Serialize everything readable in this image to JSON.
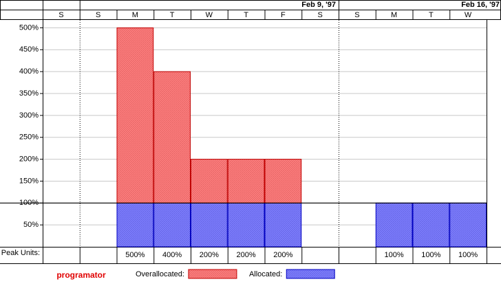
{
  "chart_data": {
    "type": "bar",
    "resource": "programator",
    "peak_label": "Peak Units:",
    "week_labels": [
      "Feb 9, '97",
      "Feb 16, '97"
    ],
    "categories": [
      "S",
      "S",
      "M",
      "T",
      "W",
      "T",
      "F",
      "S",
      "S",
      "M",
      "T",
      "W"
    ],
    "series": [
      {
        "name": "Allocated:",
        "color": "#8080ff",
        "edge": "#0000c0",
        "values": [
          null,
          null,
          100,
          100,
          100,
          100,
          100,
          null,
          null,
          100,
          100,
          100
        ]
      },
      {
        "name": "Overallocated:",
        "color": "#ff8080",
        "edge": "#c00000",
        "values": [
          null,
          null,
          400,
          300,
          100,
          100,
          100,
          null,
          null,
          null,
          null,
          null
        ]
      }
    ],
    "legend_order": [
      1,
      0
    ],
    "peak_units": {
      "values": [
        null,
        null,
        500,
        400,
        200,
        200,
        200,
        null,
        null,
        100,
        100,
        100
      ],
      "value_labels": [
        null,
        null,
        "500%",
        "400%",
        "200%",
        "200%",
        "200%",
        null,
        null,
        "100%",
        "100%",
        "100%"
      ]
    },
    "max_units": 100,
    "ylim": [
      0,
      518
    ],
    "yticks": [
      {
        "value": 50,
        "label": "50%"
      },
      {
        "value": 100,
        "label": "100%"
      },
      {
        "value": 150,
        "label": "150%"
      },
      {
        "value": 200,
        "label": "200%"
      },
      {
        "value": 250,
        "label": "250%"
      },
      {
        "value": 300,
        "label": "300%"
      },
      {
        "value": 350,
        "label": "350%"
      },
      {
        "value": 400,
        "label": "400%"
      },
      {
        "value": 450,
        "label": "450%"
      },
      {
        "value": 500,
        "label": "500%"
      }
    ],
    "grid": true
  }
}
